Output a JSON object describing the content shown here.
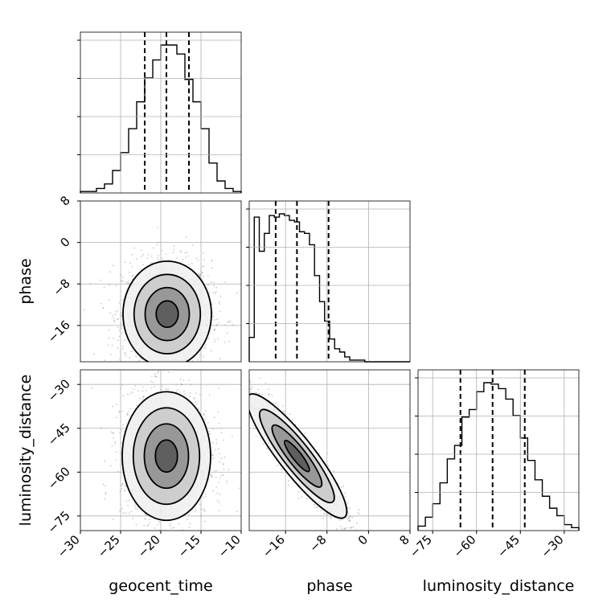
{
  "chart_data": {
    "type": "corner",
    "parameters": [
      "geocent_time",
      "phase",
      "luminosity_distance"
    ],
    "ranges": {
      "geocent_time": [
        -30,
        -10
      ],
      "phase": [
        -23,
        8
      ],
      "luminosity_distance": [
        -80,
        -25
      ]
    },
    "ticks": {
      "geocent_time": [
        -30,
        -25,
        -20,
        -15,
        -10
      ],
      "phase": [
        -16,
        -8,
        0,
        8
      ],
      "luminosity_distance": [
        -75,
        -60,
        -45,
        -30
      ]
    },
    "tick_labels": {
      "geocent_time": [
        "−30",
        "−25",
        "−20",
        "−15",
        "−10"
      ],
      "phase": [
        "−16",
        "−8",
        "0",
        "8"
      ],
      "luminosity_distance": [
        "−75",
        "−60",
        "−45",
        "−30"
      ]
    },
    "quantiles": {
      "geocent_time": [
        -22.0,
        -19.3,
        -16.5
      ],
      "phase": [
        -17.9,
        -13.8,
        -7.7
      ],
      "luminosity_distance": [
        -65.5,
        -54.5,
        -43.5
      ]
    },
    "histograms": {
      "geocent_time": {
        "edges": [
          -30,
          -29,
          -28,
          -27,
          -26,
          -25,
          -24,
          -23,
          -22,
          -21,
          -20,
          -19,
          -18,
          -17,
          -16,
          -15,
          -14,
          -13,
          -12,
          -11,
          -10
        ],
        "counts": [
          0.01,
          0.01,
          0.03,
          0.06,
          0.15,
          0.27,
          0.43,
          0.61,
          0.77,
          0.89,
          0.99,
          0.99,
          0.93,
          0.76,
          0.61,
          0.43,
          0.2,
          0.08,
          0.03,
          0.01
        ]
      },
      "phase": {
        "edges": [
          -23,
          -22.03,
          -21.06,
          -20.09,
          -19.13,
          -18.16,
          -17.19,
          -16.22,
          -15.25,
          -14.28,
          -13.31,
          -12.34,
          -11.38,
          -10.41,
          -9.44,
          -8.47,
          -7.5,
          -6.53,
          -5.56,
          -4.59,
          -3.63,
          -2.66,
          -1.69,
          -0.72,
          0.25,
          1.22,
          2.19,
          3.16,
          4.13,
          5.09,
          6.06,
          7.03,
          8
        ],
        "counts": [
          0.15,
          0.89,
          0.68,
          0.79,
          0.9,
          0.89,
          0.91,
          0.9,
          0.87,
          0.86,
          0.8,
          0.79,
          0.72,
          0.53,
          0.37,
          0.25,
          0.14,
          0.08,
          0.06,
          0.03,
          0.01,
          0.01,
          0.01,
          0,
          0,
          0,
          0,
          0,
          0,
          0,
          0,
          0
        ]
      },
      "luminosity_distance": {
        "edges": [
          -80,
          -77.5,
          -75,
          -72.5,
          -70,
          -67.5,
          -65,
          -62.5,
          -60,
          -57.5,
          -55,
          -52.5,
          -50,
          -47.5,
          -45,
          -42.5,
          -40,
          -37.5,
          -35,
          -32.5,
          -30,
          -27.5,
          -25
        ],
        "counts": [
          0.03,
          0.09,
          0.18,
          0.32,
          0.48,
          0.57,
          0.76,
          0.81,
          0.93,
          0.99,
          0.98,
          0.95,
          0.88,
          0.77,
          0.62,
          0.47,
          0.34,
          0.23,
          0.15,
          0.1,
          0.04,
          0.02
        ]
      }
    },
    "contour_panels": [
      {
        "x": "geocent_time",
        "y": "phase",
        "center": [
          -19.2,
          -13.8
        ],
        "correlation": 0.0
      },
      {
        "x": "geocent_time",
        "y": "luminosity_distance",
        "center": [
          -19.3,
          -54.5
        ],
        "correlation": 0.0
      },
      {
        "x": "phase",
        "y": "luminosity_distance",
        "center": [
          -13.8,
          -54.5
        ],
        "correlation": -0.93
      }
    ],
    "grid": true
  },
  "labels": {
    "geocent_time": "geocent_time",
    "phase": "phase",
    "luminosity_distance": "luminosity_distance"
  }
}
